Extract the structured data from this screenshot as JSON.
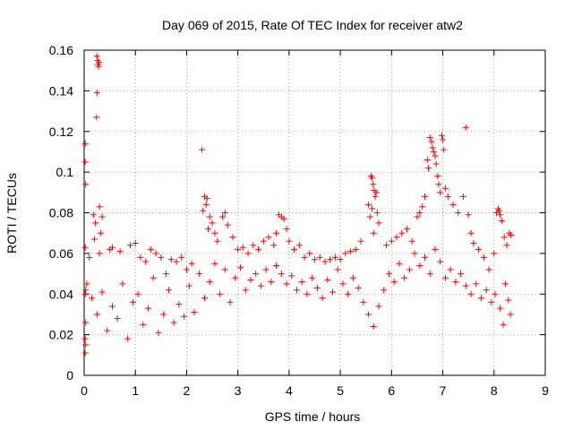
{
  "chart_data": {
    "type": "scatter",
    "title": "Day 069 of 2015, Rate Of TEC Index for receiver atw2",
    "xlabel": "GPS time / hours",
    "ylabel": "ROTI / TECUs",
    "xlim": [
      0,
      9
    ],
    "ylim": [
      0,
      0.16
    ],
    "x_ticks": [
      "0",
      "1",
      "2",
      "3",
      "4",
      "5",
      "6",
      "7",
      "8",
      "9"
    ],
    "y_ticks": [
      "0",
      "0.02",
      "0.04",
      "0.06",
      "0.08",
      "0.1",
      "0.12",
      "0.14",
      "0.16"
    ],
    "grid": true,
    "marker": "plus",
    "series_color": "#ff0000",
    "series": [
      {
        "name": "ROTI",
        "points": [
          [
            0.02,
            0.114
          ],
          [
            0.02,
            0.105
          ],
          [
            0.03,
            0.094
          ],
          [
            0.02,
            0.063
          ],
          [
            0.03,
            0.042
          ],
          [
            0.02,
            0.04
          ],
          [
            0.03,
            0.026
          ],
          [
            0.02,
            0.018
          ],
          [
            0.03,
            0.015
          ],
          [
            0.02,
            0.011
          ],
          [
            0.25,
            0.157
          ],
          [
            0.26,
            0.155
          ],
          [
            0.27,
            0.153
          ],
          [
            0.28,
            0.152
          ],
          [
            0.29,
            0.154
          ],
          [
            0.25,
            0.139
          ],
          [
            0.24,
            0.127
          ],
          [
            0.18,
            0.079
          ],
          [
            0.22,
            0.075
          ],
          [
            0.3,
            0.083
          ],
          [
            0.35,
            0.078
          ],
          [
            0.2,
            0.067
          ],
          [
            0.32,
            0.07
          ],
          [
            0.1,
            0.058
          ],
          [
            0.3,
            0.06
          ],
          [
            0.5,
            0.062
          ],
          [
            0.55,
            0.063
          ],
          [
            0.7,
            0.061
          ],
          [
            0.9,
            0.064
          ],
          [
            1.0,
            0.065
          ],
          [
            1.1,
            0.058
          ],
          [
            1.2,
            0.056
          ],
          [
            1.3,
            0.062
          ],
          [
            1.4,
            0.06
          ],
          [
            1.5,
            0.058
          ],
          [
            1.6,
            0.05
          ],
          [
            1.7,
            0.057
          ],
          [
            1.8,
            0.056
          ],
          [
            1.9,
            0.058
          ],
          [
            2.0,
            0.052
          ],
          [
            2.1,
            0.055
          ],
          [
            2.3,
            0.111
          ],
          [
            2.35,
            0.088
          ],
          [
            2.4,
            0.087
          ],
          [
            2.38,
            0.084
          ],
          [
            2.32,
            0.081
          ],
          [
            2.45,
            0.078
          ],
          [
            2.5,
            0.075
          ],
          [
            2.42,
            0.072
          ],
          [
            2.55,
            0.07
          ],
          [
            2.6,
            0.066
          ],
          [
            2.7,
            0.078
          ],
          [
            2.75,
            0.08
          ],
          [
            2.8,
            0.074
          ],
          [
            2.9,
            0.068
          ],
          [
            3.0,
            0.062
          ],
          [
            3.1,
            0.063
          ],
          [
            3.2,
            0.06
          ],
          [
            3.3,
            0.064
          ],
          [
            3.4,
            0.062
          ],
          [
            3.5,
            0.066
          ],
          [
            3.6,
            0.068
          ],
          [
            3.7,
            0.064
          ],
          [
            3.75,
            0.07
          ],
          [
            3.8,
            0.079
          ],
          [
            3.85,
            0.078
          ],
          [
            3.9,
            0.077
          ],
          [
            3.95,
            0.072
          ],
          [
            4.0,
            0.066
          ],
          [
            4.1,
            0.062
          ],
          [
            4.2,
            0.064
          ],
          [
            4.3,
            0.058
          ],
          [
            4.4,
            0.06
          ],
          [
            4.5,
            0.057
          ],
          [
            4.6,
            0.058
          ],
          [
            4.7,
            0.056
          ],
          [
            4.8,
            0.057
          ],
          [
            4.9,
            0.058
          ],
          [
            5.0,
            0.057
          ],
          [
            5.1,
            0.06
          ],
          [
            5.2,
            0.061
          ],
          [
            5.3,
            0.062
          ],
          [
            5.4,
            0.066
          ],
          [
            5.55,
            0.084
          ],
          [
            5.6,
            0.098
          ],
          [
            5.62,
            0.097
          ],
          [
            5.64,
            0.094
          ],
          [
            5.66,
            0.091
          ],
          [
            5.68,
            0.088
          ],
          [
            5.7,
            0.09
          ],
          [
            5.62,
            0.082
          ],
          [
            5.58,
            0.078
          ],
          [
            5.72,
            0.08
          ],
          [
            5.75,
            0.075
          ],
          [
            5.65,
            0.07
          ],
          [
            5.9,
            0.064
          ],
          [
            6.0,
            0.066
          ],
          [
            6.1,
            0.068
          ],
          [
            6.2,
            0.07
          ],
          [
            6.3,
            0.072
          ],
          [
            6.4,
            0.066
          ],
          [
            6.5,
            0.078
          ],
          [
            6.55,
            0.08
          ],
          [
            6.6,
            0.083
          ],
          [
            6.65,
            0.088
          ],
          [
            6.75,
            0.117
          ],
          [
            6.78,
            0.115
          ],
          [
            6.8,
            0.112
          ],
          [
            6.82,
            0.11
          ],
          [
            6.85,
            0.108
          ],
          [
            6.87,
            0.104
          ],
          [
            6.7,
            0.106
          ],
          [
            6.72,
            0.102
          ],
          [
            6.9,
            0.098
          ],
          [
            6.92,
            0.094
          ],
          [
            6.95,
            0.09
          ],
          [
            6.98,
            0.118
          ],
          [
            7.0,
            0.116
          ],
          [
            7.02,
            0.111
          ],
          [
            7.05,
            0.092
          ],
          [
            7.1,
            0.088
          ],
          [
            7.2,
            0.084
          ],
          [
            7.3,
            0.08
          ],
          [
            7.4,
            0.088
          ],
          [
            7.45,
            0.122
          ],
          [
            7.5,
            0.079
          ],
          [
            7.55,
            0.07
          ],
          [
            7.6,
            0.065
          ],
          [
            7.7,
            0.062
          ],
          [
            7.8,
            0.058
          ],
          [
            7.9,
            0.052
          ],
          [
            8.0,
            0.06
          ],
          [
            8.05,
            0.08
          ],
          [
            8.08,
            0.082
          ],
          [
            8.1,
            0.081
          ],
          [
            8.12,
            0.079
          ],
          [
            8.15,
            0.076
          ],
          [
            8.2,
            0.068
          ],
          [
            8.25,
            0.064
          ],
          [
            8.3,
            0.07
          ],
          [
            8.33,
            0.069
          ],
          [
            0.05,
            0.045
          ],
          [
            0.15,
            0.038
          ],
          [
            0.25,
            0.03
          ],
          [
            0.35,
            0.041
          ],
          [
            0.45,
            0.022
          ],
          [
            0.55,
            0.034
          ],
          [
            0.65,
            0.028
          ],
          [
            0.75,
            0.045
          ],
          [
            0.85,
            0.018
          ],
          [
            0.95,
            0.036
          ],
          [
            1.05,
            0.04
          ],
          [
            1.15,
            0.025
          ],
          [
            1.25,
            0.033
          ],
          [
            1.35,
            0.048
          ],
          [
            1.45,
            0.021
          ],
          [
            1.55,
            0.03
          ],
          [
            1.65,
            0.042
          ],
          [
            1.75,
            0.026
          ],
          [
            1.85,
            0.035
          ],
          [
            1.95,
            0.029
          ],
          [
            2.05,
            0.044
          ],
          [
            2.15,
            0.031
          ],
          [
            2.25,
            0.05
          ],
          [
            2.35,
            0.038
          ],
          [
            2.45,
            0.046
          ],
          [
            2.55,
            0.055
          ],
          [
            2.65,
            0.04
          ],
          [
            2.75,
            0.052
          ],
          [
            2.85,
            0.036
          ],
          [
            2.95,
            0.048
          ],
          [
            3.05,
            0.053
          ],
          [
            3.15,
            0.042
          ],
          [
            3.25,
            0.047
          ],
          [
            3.35,
            0.05
          ],
          [
            3.45,
            0.044
          ],
          [
            3.55,
            0.052
          ],
          [
            3.65,
            0.046
          ],
          [
            3.75,
            0.054
          ],
          [
            3.85,
            0.05
          ],
          [
            3.95,
            0.045
          ],
          [
            4.05,
            0.049
          ],
          [
            4.15,
            0.042
          ],
          [
            4.25,
            0.046
          ],
          [
            4.35,
            0.04
          ],
          [
            4.45,
            0.048
          ],
          [
            4.55,
            0.043
          ],
          [
            4.65,
            0.038
          ],
          [
            4.75,
            0.047
          ],
          [
            4.85,
            0.041
          ],
          [
            4.95,
            0.052
          ],
          [
            5.05,
            0.045
          ],
          [
            5.15,
            0.04
          ],
          [
            5.25,
            0.048
          ],
          [
            5.35,
            0.043
          ],
          [
            5.45,
            0.036
          ],
          [
            5.55,
            0.03
          ],
          [
            5.65,
            0.024
          ],
          [
            5.75,
            0.034
          ],
          [
            5.85,
            0.042
          ],
          [
            5.95,
            0.05
          ],
          [
            6.05,
            0.046
          ],
          [
            6.15,
            0.055
          ],
          [
            6.25,
            0.048
          ],
          [
            6.35,
            0.052
          ],
          [
            6.45,
            0.06
          ],
          [
            6.55,
            0.054
          ],
          [
            6.65,
            0.058
          ],
          [
            6.75,
            0.05
          ],
          [
            6.85,
            0.062
          ],
          [
            6.95,
            0.056
          ],
          [
            7.05,
            0.048
          ],
          [
            7.15,
            0.052
          ],
          [
            7.25,
            0.046
          ],
          [
            7.35,
            0.05
          ],
          [
            7.45,
            0.044
          ],
          [
            7.55,
            0.04
          ],
          [
            7.65,
            0.045
          ],
          [
            7.75,
            0.038
          ],
          [
            7.85,
            0.042
          ],
          [
            7.95,
            0.036
          ],
          [
            8.02,
            0.04
          ],
          [
            8.12,
            0.033
          ],
          [
            8.22,
            0.045
          ],
          [
            8.32,
            0.03
          ],
          [
            8.18,
            0.025
          ],
          [
            8.28,
            0.037
          ]
        ]
      }
    ]
  }
}
